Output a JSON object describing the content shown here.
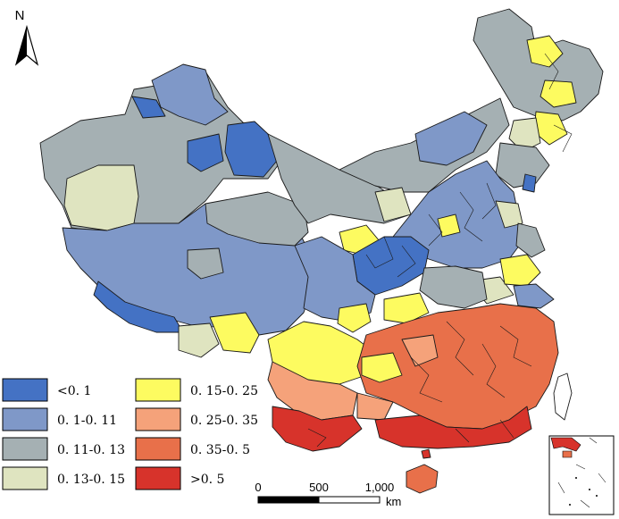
{
  "north_arrow": {
    "label": "N"
  },
  "legend": {
    "items": [
      {
        "label": "<0. 1",
        "color": "#4472c4"
      },
      {
        "label": "0. 1-0. 11",
        "color": "#7f98c8"
      },
      {
        "label": "0. 11-0. 13",
        "color": "#a5b0b3"
      },
      {
        "label": "0. 13-0. 15",
        "color": "#dfe4c0"
      },
      {
        "label": "0. 15-0. 25",
        "color": "#fdfb60"
      },
      {
        "label": "0. 25-0. 35",
        "color": "#f5a27a"
      },
      {
        "label": "0. 35-0. 5",
        "color": "#e8704a"
      },
      {
        "label": ">0. 5",
        "color": "#d7332b"
      }
    ]
  },
  "scale_bar": {
    "ticks": [
      "0",
      "500",
      "1,000"
    ],
    "unit": "km"
  }
}
